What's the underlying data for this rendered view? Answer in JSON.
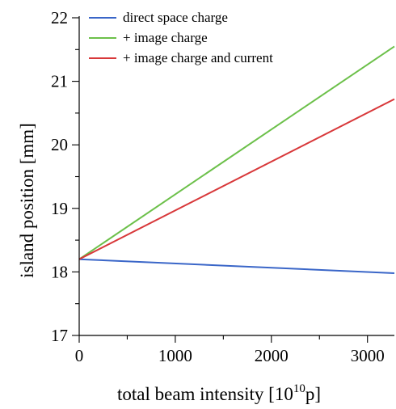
{
  "chart_data": {
    "type": "line",
    "title": "",
    "xlabel": "total beam intensity [10",
    "xlabel_sup": "10",
    "xlabel_tail": "p]",
    "ylabel": "island position [mm]",
    "xlim": [
      0,
      3280
    ],
    "ylim": [
      17,
      22
    ],
    "x_ticks_major": [
      0,
      1000,
      2000,
      3000
    ],
    "x_tick_labels": [
      "0",
      "1000",
      "2000",
      "3000"
    ],
    "x_ticks_minor": [
      500,
      1500,
      2500
    ],
    "y_ticks_major": [
      17,
      18,
      19,
      20,
      21,
      22
    ],
    "y_tick_labels": [
      "17",
      "18",
      "19",
      "20",
      "21",
      "22"
    ],
    "y_ticks_minor": [
      17.5,
      18.5,
      19.5,
      20.5,
      21.5
    ],
    "grid": false,
    "legend_position": "top-left",
    "series": [
      {
        "name": "direct space charge",
        "color": "#3a66c8",
        "x": [
          0,
          3280
        ],
        "y": [
          18.2,
          17.98
        ]
      },
      {
        "name": "+ image charge",
        "color": "#6cc04a",
        "x": [
          0,
          3280
        ],
        "y": [
          18.2,
          21.55
        ]
      },
      {
        "name": "+ image charge and current",
        "color": "#d8383a",
        "x": [
          0,
          3280
        ],
        "y": [
          18.2,
          20.72
        ]
      }
    ]
  }
}
